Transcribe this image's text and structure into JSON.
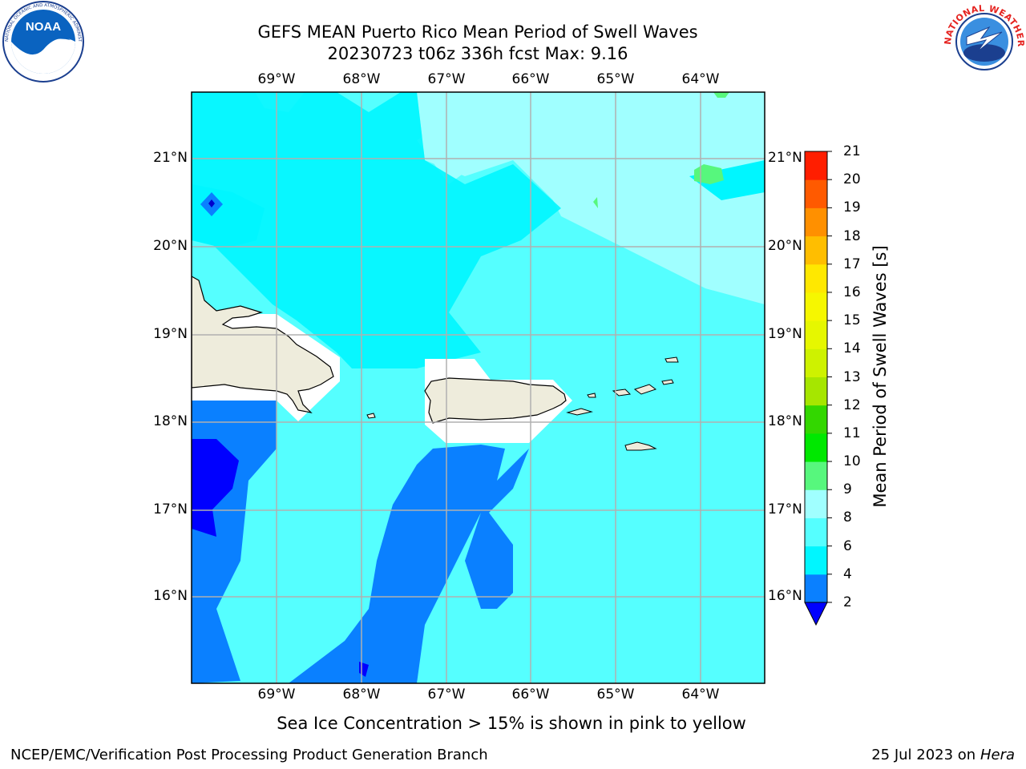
{
  "header": {
    "title_line1": "GEFS MEAN Puerto Rico Mean Period of Swell Waves",
    "title_line2": "20230723 t06z 336h fcst   Max: 9.16"
  },
  "logos": {
    "noaa": {
      "center_text": "NOAA",
      "ring_text": "NATIONAL OCEANIC AND ATMOSPHERIC ADMINISTRATION · U.S. DEPARTMENT OF COMMERCE"
    },
    "nws": {
      "ring_text": "NATIONAL WEATHER SERVICE"
    }
  },
  "map": {
    "lon_labels": [
      "69°W",
      "68°W",
      "67°W",
      "66°W",
      "65°W",
      "64°W"
    ],
    "lat_labels": [
      "21°N",
      "20°N",
      "19°N",
      "18°N",
      "17°N",
      "16°N"
    ],
    "land_color": "#eeecdc",
    "gridline_color": "#b0b0b0"
  },
  "colorbar": {
    "title": "Mean Period of Swell Waves [s]",
    "labels": [
      "2",
      "4",
      "6",
      "8",
      "9",
      "10",
      "11",
      "12",
      "13",
      "14",
      "15",
      "16",
      "17",
      "18",
      "19",
      "20",
      "21"
    ],
    "colors": [
      "#0a80ff",
      "#00f6ff",
      "#55ffff",
      "#a0ffff",
      "#57f77d",
      "#00e800",
      "#33d700",
      "#a6e600",
      "#cef200",
      "#e6f700",
      "#f6f700",
      "#ffe800",
      "#ffbe00",
      "#ff9000",
      "#ff5a00",
      "#ff1e00"
    ],
    "extend_color": "#0000ff"
  },
  "note": "Sea Ice Concentration > 15% is shown in pink to yellow",
  "footer": {
    "left": "NCEP/EMC/Verification Post Processing Product Generation Branch",
    "right_prefix": "25 Jul 2023 on ",
    "right_host": "Hera"
  }
}
